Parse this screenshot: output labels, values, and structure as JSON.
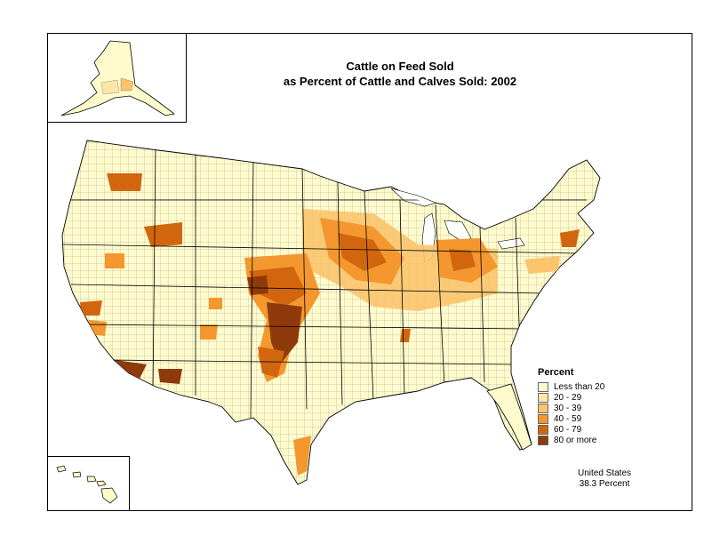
{
  "title": {
    "line1": "Cattle on Feed Sold",
    "line2": "as Percent of Cattle and Calves Sold:  2002"
  },
  "legend": {
    "title": "Percent",
    "items": [
      {
        "label": "Less than 20",
        "color": "#FFFBCC"
      },
      {
        "label": "20 - 29",
        "color": "#FDE6A8"
      },
      {
        "label": "30 - 39",
        "color": "#FBC46D"
      },
      {
        "label": "40 - 59",
        "color": "#F3972E"
      },
      {
        "label": "60 - 79",
        "color": "#D1660F"
      },
      {
        "label": "80 or more",
        "color": "#8E3A0A"
      }
    ]
  },
  "national_note": {
    "line1": "United States",
    "line2": "38.3 Percent"
  }
}
